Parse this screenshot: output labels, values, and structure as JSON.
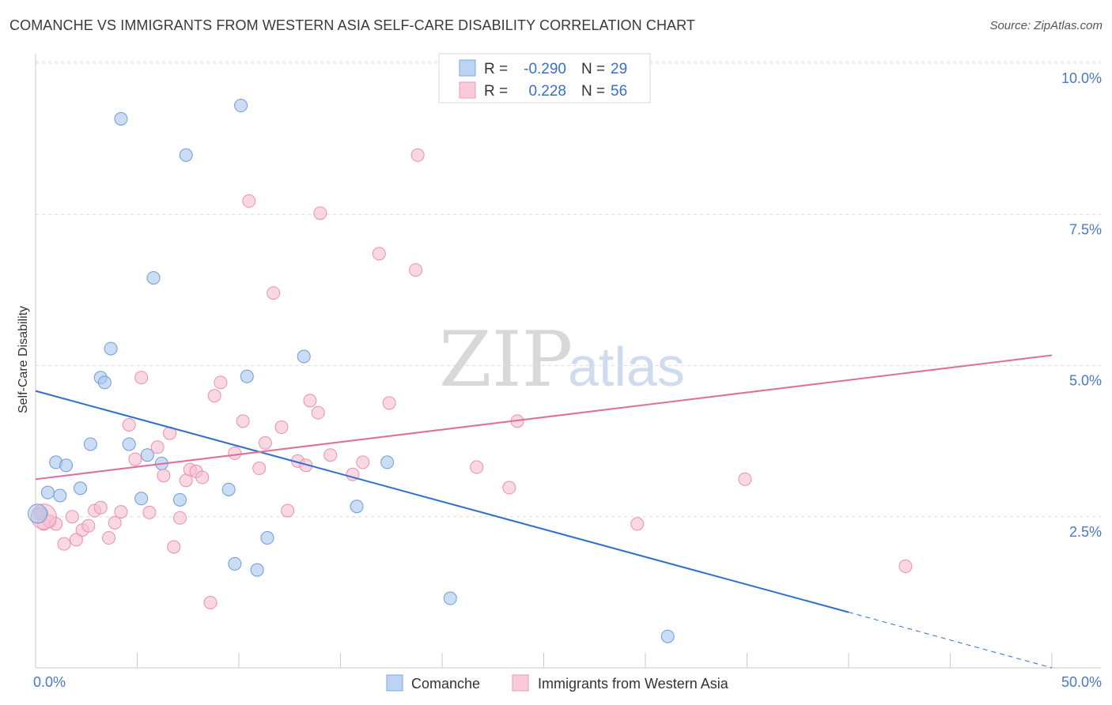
{
  "title": "COMANCHE VS IMMIGRANTS FROM WESTERN ASIA SELF-CARE DISABILITY CORRELATION CHART",
  "source": "Source: ZipAtlas.com",
  "watermark": {
    "zip": "ZIP",
    "atlas": "atlas"
  },
  "chart_data": {
    "type": "scatter",
    "title": "COMANCHE VS IMMIGRANTS FROM WESTERN ASIA SELF-CARE DISABILITY CORRELATION CHART",
    "xlabel": "",
    "ylabel": "Self-Care Disability",
    "xlim": [
      0,
      50
    ],
    "ylim": [
      0,
      10.5
    ],
    "x_tick_labels": [
      "0.0%",
      "50.0%"
    ],
    "y_ticks": [
      2.5,
      5.0,
      7.5,
      10.0
    ],
    "y_tick_labels": [
      "2.5%",
      "5.0%",
      "7.5%",
      "10.0%"
    ],
    "grid": "horizontal dashed",
    "legend_placement": "top-center",
    "series": [
      {
        "name": "Comanche",
        "color": "#a9c6ef",
        "edge_color": "#6f9ad8",
        "line_color": "#2f6fcc",
        "R": "-0.290",
        "N": "29",
        "trend": {
          "x": [
            0,
            40
          ],
          "y": [
            4.58,
            0.92
          ],
          "dashed_to": [
            50,
            0.0
          ]
        },
        "points": [
          [
            0.3,
            2.55
          ],
          [
            0.6,
            2.9
          ],
          [
            1.0,
            3.4
          ],
          [
            1.2,
            2.85
          ],
          [
            1.5,
            3.35
          ],
          [
            2.2,
            2.97
          ],
          [
            2.7,
            3.7
          ],
          [
            3.2,
            4.8
          ],
          [
            3.4,
            4.72
          ],
          [
            3.7,
            5.28
          ],
          [
            4.2,
            9.08
          ],
          [
            4.6,
            3.7
          ],
          [
            5.2,
            2.8
          ],
          [
            5.5,
            3.52
          ],
          [
            5.8,
            6.45
          ],
          [
            6.2,
            3.38
          ],
          [
            7.1,
            2.78
          ],
          [
            7.4,
            8.48
          ],
          [
            9.5,
            2.95
          ],
          [
            9.8,
            1.72
          ],
          [
            10.1,
            9.3
          ],
          [
            10.4,
            4.82
          ],
          [
            10.9,
            1.62
          ],
          [
            11.4,
            2.15
          ],
          [
            13.2,
            5.15
          ],
          [
            15.8,
            2.67
          ],
          [
            17.3,
            3.4
          ],
          [
            20.4,
            1.15
          ],
          [
            31.1,
            0.52
          ]
        ]
      },
      {
        "name": "Immigrants from Western Asia",
        "color": "#f6bed0",
        "edge_color": "#ea90ad",
        "line_color": "#e0709a",
        "R": "0.228",
        "N": "56",
        "trend": {
          "x": [
            0,
            50
          ],
          "y": [
            3.12,
            5.17
          ]
        },
        "points": [
          [
            0.2,
            2.55
          ],
          [
            0.4,
            2.38
          ],
          [
            0.7,
            2.42
          ],
          [
            1.0,
            2.38
          ],
          [
            1.4,
            2.05
          ],
          [
            1.8,
            2.5
          ],
          [
            2.0,
            2.12
          ],
          [
            2.3,
            2.28
          ],
          [
            2.6,
            2.35
          ],
          [
            2.9,
            2.6
          ],
          [
            3.2,
            2.65
          ],
          [
            3.6,
            2.15
          ],
          [
            3.9,
            2.4
          ],
          [
            4.2,
            2.58
          ],
          [
            4.6,
            4.02
          ],
          [
            4.9,
            3.45
          ],
          [
            5.2,
            4.8
          ],
          [
            5.6,
            2.57
          ],
          [
            6.0,
            3.65
          ],
          [
            6.3,
            3.18
          ],
          [
            6.6,
            3.88
          ],
          [
            6.8,
            2.0
          ],
          [
            7.1,
            2.48
          ],
          [
            7.4,
            3.1
          ],
          [
            7.6,
            3.28
          ],
          [
            7.9,
            3.25
          ],
          [
            8.2,
            3.15
          ],
          [
            8.6,
            1.08
          ],
          [
            8.8,
            4.5
          ],
          [
            9.1,
            4.72
          ],
          [
            9.8,
            3.55
          ],
          [
            10.2,
            4.08
          ],
          [
            10.5,
            7.72
          ],
          [
            11.0,
            3.3
          ],
          [
            11.3,
            3.72
          ],
          [
            11.7,
            6.2
          ],
          [
            12.1,
            3.98
          ],
          [
            12.4,
            2.6
          ],
          [
            12.9,
            3.42
          ],
          [
            13.3,
            3.35
          ],
          [
            13.5,
            4.42
          ],
          [
            13.9,
            4.22
          ],
          [
            14.0,
            7.52
          ],
          [
            14.5,
            3.52
          ],
          [
            15.6,
            3.2
          ],
          [
            16.1,
            3.4
          ],
          [
            16.9,
            6.85
          ],
          [
            17.4,
            4.38
          ],
          [
            18.7,
            6.58
          ],
          [
            18.8,
            8.48
          ],
          [
            21.7,
            3.32
          ],
          [
            23.3,
            2.98
          ],
          [
            23.7,
            4.08
          ],
          [
            29.6,
            2.38
          ],
          [
            34.9,
            3.12
          ],
          [
            42.8,
            1.68
          ]
        ]
      }
    ]
  },
  "legend": {
    "r_label": "R =",
    "n_label": "N ="
  }
}
